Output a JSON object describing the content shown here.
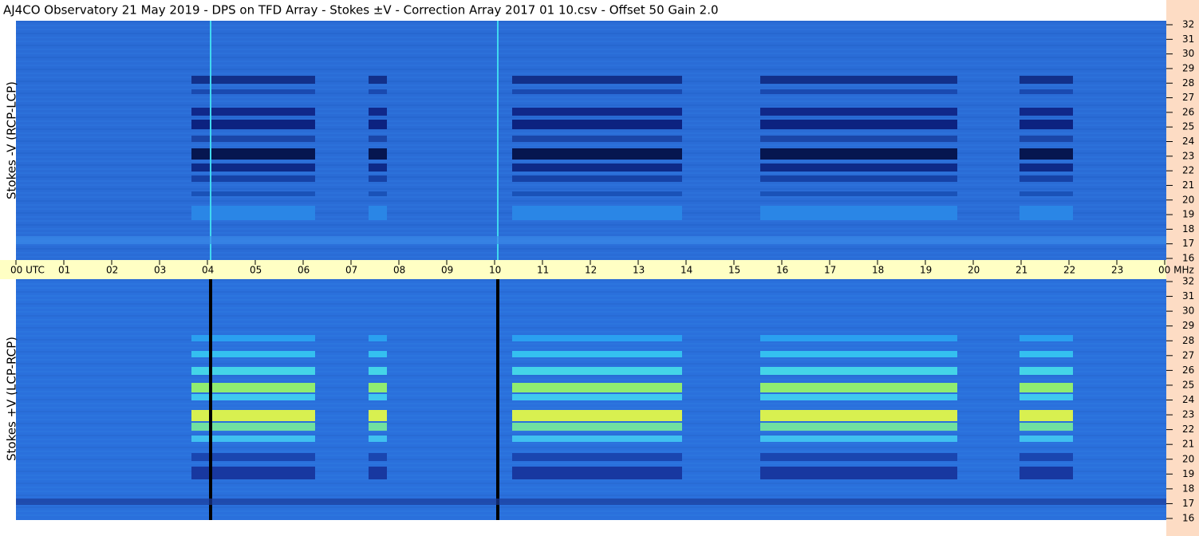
{
  "title": "AJ4CO Observatory  21 May 2019  -  DPS on TFD Array  -  Stokes ±V  -  Correction Array 2017 01 10.csv  -  Offset 50  Gain 2.0",
  "panels": [
    {
      "label": "Stokes -V (RCP-LCP)"
    },
    {
      "label": "Stokes +V (LCP-RCP)"
    }
  ],
  "time_axis": {
    "labels": [
      "00 UTC",
      "01",
      "02",
      "03",
      "04",
      "05",
      "06",
      "07",
      "08",
      "09",
      "10",
      "11",
      "12",
      "13",
      "14",
      "15",
      "16",
      "17",
      "18",
      "19",
      "20",
      "21",
      "22",
      "23",
      "00 MHz"
    ]
  },
  "freq_axis": {
    "labels": [
      "32",
      "31",
      "30",
      "29",
      "28",
      "27",
      "26",
      "25",
      "24",
      "23",
      "22",
      "21",
      "20",
      "19",
      "18",
      "17",
      "16"
    ]
  }
}
